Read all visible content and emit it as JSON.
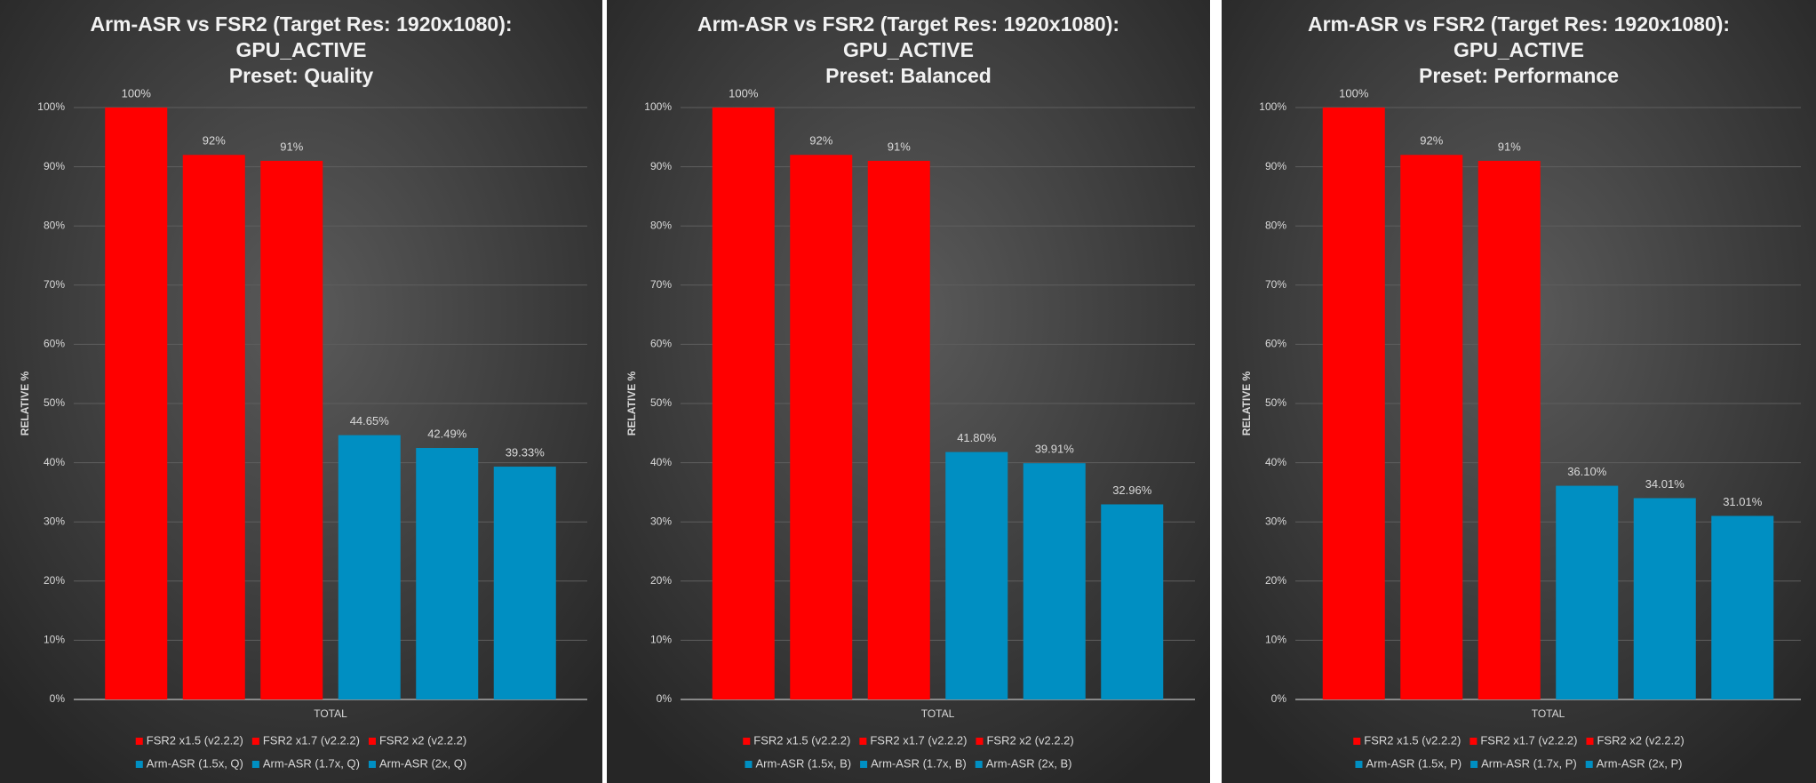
{
  "chart_data": [
    {
      "type": "bar",
      "title": [
        "Arm-ASR vs FSR2 (Target Res: 1920x1080):",
        "GPU_ACTIVE",
        "Preset: Quality"
      ],
      "ylabel": "RELATIVE %",
      "categories": [
        "TOTAL"
      ],
      "ylim": [
        0,
        100
      ],
      "yticks": [
        {
          "value": 0,
          "label": "0%"
        },
        {
          "value": 10,
          "label": "10%"
        },
        {
          "value": 20,
          "label": "20%"
        },
        {
          "value": 30,
          "label": "30%"
        },
        {
          "value": 40,
          "label": "40%"
        },
        {
          "value": 50,
          "label": "50%"
        },
        {
          "value": 60,
          "label": "60%"
        },
        {
          "value": 70,
          "label": "70%"
        },
        {
          "value": 80,
          "label": "80%"
        },
        {
          "value": 90,
          "label": "90%"
        },
        {
          "value": 100,
          "label": "100%"
        }
      ],
      "grid": true,
      "series": [
        {
          "name": "FSR2 x1.5 (v2.2.2)",
          "color": "#ff0000",
          "values": [
            100
          ],
          "value_labels": [
            "100%"
          ]
        },
        {
          "name": "FSR2 x1.7 (v2.2.2)",
          "color": "#ff0000",
          "values": [
            92
          ],
          "value_labels": [
            "92%"
          ]
        },
        {
          "name": "FSR2 x2 (v2.2.2)",
          "color": "#ff0000",
          "values": [
            91
          ],
          "value_labels": [
            "91%"
          ]
        },
        {
          "name": "Arm-ASR (1.5x, Q)",
          "color": "#008fc2",
          "values": [
            44.65
          ],
          "value_labels": [
            "44.65%"
          ]
        },
        {
          "name": "Arm-ASR (1.7x, Q)",
          "color": "#008fc2",
          "values": [
            42.49
          ],
          "value_labels": [
            "42.49%"
          ]
        },
        {
          "name": "Arm-ASR (2x, Q)",
          "color": "#008fc2",
          "values": [
            39.33
          ],
          "value_labels": [
            "39.33%"
          ]
        }
      ]
    },
    {
      "type": "bar",
      "title": [
        "Arm-ASR vs FSR2 (Target Res: 1920x1080):",
        "GPU_ACTIVE",
        "Preset: Balanced"
      ],
      "ylabel": "RELATIVE %",
      "categories": [
        "TOTAL"
      ],
      "ylim": [
        0,
        100
      ],
      "yticks": [
        {
          "value": 0,
          "label": "0%"
        },
        {
          "value": 10,
          "label": "10%"
        },
        {
          "value": 20,
          "label": "20%"
        },
        {
          "value": 30,
          "label": "30%"
        },
        {
          "value": 40,
          "label": "40%"
        },
        {
          "value": 50,
          "label": "50%"
        },
        {
          "value": 60,
          "label": "60%"
        },
        {
          "value": 70,
          "label": "70%"
        },
        {
          "value": 80,
          "label": "80%"
        },
        {
          "value": 90,
          "label": "90%"
        },
        {
          "value": 100,
          "label": "100%"
        }
      ],
      "grid": true,
      "series": [
        {
          "name": "FSR2 x1.5 (v2.2.2)",
          "color": "#ff0000",
          "values": [
            100
          ],
          "value_labels": [
            "100%"
          ]
        },
        {
          "name": "FSR2 x1.7 (v2.2.2)",
          "color": "#ff0000",
          "values": [
            92
          ],
          "value_labels": [
            "92%"
          ]
        },
        {
          "name": "FSR2 x2 (v2.2.2)",
          "color": "#ff0000",
          "values": [
            91
          ],
          "value_labels": [
            "91%"
          ]
        },
        {
          "name": "Arm-ASR (1.5x, B)",
          "color": "#008fc2",
          "values": [
            41.8
          ],
          "value_labels": [
            "41.80%"
          ]
        },
        {
          "name": "Arm-ASR (1.7x, B)",
          "color": "#008fc2",
          "values": [
            39.91
          ],
          "value_labels": [
            "39.91%"
          ]
        },
        {
          "name": "Arm-ASR (2x, B)",
          "color": "#008fc2",
          "values": [
            32.96
          ],
          "value_labels": [
            "32.96%"
          ]
        }
      ]
    },
    {
      "type": "bar",
      "title": [
        "Arm-ASR vs FSR2 (Target Res: 1920x1080):",
        "GPU_ACTIVE",
        "Preset: Performance"
      ],
      "ylabel": "RELATIVE %",
      "categories": [
        "TOTAL"
      ],
      "ylim": [
        0,
        100
      ],
      "yticks": [
        {
          "value": 0,
          "label": "0%"
        },
        {
          "value": 10,
          "label": "10%"
        },
        {
          "value": 20,
          "label": "20%"
        },
        {
          "value": 30,
          "label": "30%"
        },
        {
          "value": 40,
          "label": "40%"
        },
        {
          "value": 50,
          "label": "50%"
        },
        {
          "value": 60,
          "label": "60%"
        },
        {
          "value": 70,
          "label": "70%"
        },
        {
          "value": 80,
          "label": "80%"
        },
        {
          "value": 90,
          "label": "90%"
        },
        {
          "value": 100,
          "label": "100%"
        }
      ],
      "grid": true,
      "series": [
        {
          "name": "FSR2 x1.5 (v2.2.2)",
          "color": "#ff0000",
          "values": [
            100
          ],
          "value_labels": [
            "100%"
          ]
        },
        {
          "name": "FSR2 x1.7 (v2.2.2)",
          "color": "#ff0000",
          "values": [
            92
          ],
          "value_labels": [
            "92%"
          ]
        },
        {
          "name": "FSR2 x2 (v2.2.2)",
          "color": "#ff0000",
          "values": [
            91
          ],
          "value_labels": [
            "91%"
          ]
        },
        {
          "name": "Arm-ASR (1.5x, P)",
          "color": "#008fc2",
          "values": [
            36.1
          ],
          "value_labels": [
            "36.10%"
          ]
        },
        {
          "name": "Arm-ASR (1.7x, P)",
          "color": "#008fc2",
          "values": [
            34.01
          ],
          "value_labels": [
            "34.01%"
          ]
        },
        {
          "name": "Arm-ASR (2x, P)",
          "color": "#008fc2",
          "values": [
            31.01
          ],
          "value_labels": [
            "31.01%"
          ]
        }
      ]
    }
  ]
}
